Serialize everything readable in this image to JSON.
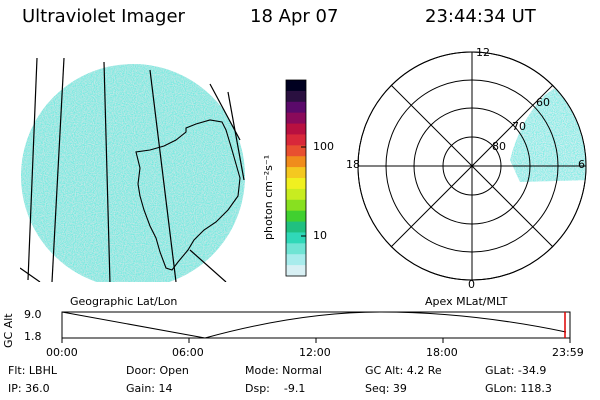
{
  "header": {
    "title": "Ultraviolet Imager",
    "date": "18 Apr 07",
    "time": "23:44:34 UT"
  },
  "colorbar": {
    "unit_label": "photon cm⁻²s⁻¹",
    "ticks": [
      "100",
      "10"
    ],
    "colors": [
      "#000020",
      "#2a1040",
      "#5a0a6a",
      "#8a0a5a",
      "#b81040",
      "#d8283a",
      "#e85030",
      "#f08c1c",
      "#f4c820",
      "#f0f020",
      "#c8ec20",
      "#88e020",
      "#40d030",
      "#20c080",
      "#30d8b8",
      "#70e4d4",
      "#a8ecec",
      "#d8f0f4"
    ]
  },
  "panels": {
    "left_label": "Geographic Lat/Lon",
    "right_label": "Apex  MLat/MLT"
  },
  "polar": {
    "top_label": "12",
    "left_label": "18",
    "right_label": "6",
    "bottom_label": "0",
    "ring_labels": [
      "60",
      "70",
      "80"
    ]
  },
  "altitude_plot": {
    "y_title": "GC Alt",
    "y_max_label": "9.0",
    "y_min_label": "1.8",
    "x_ticks": [
      "00:00",
      "06:00",
      "12:00",
      "18:00",
      "23:59"
    ]
  },
  "info": {
    "row1": {
      "filter": "Flt: LBHL",
      "door": "Door: Open",
      "mode": "Mode: Normal",
      "gc_alt": "GC Alt: 4.2 Re",
      "glat": "GLat: -34.9"
    },
    "row2": {
      "ip": "IP: 36.0",
      "gain": "Gain: 14",
      "dsp": "Dsp:    -9.1",
      "seq": "Seq: 39",
      "glon": "GLon: 118.3"
    }
  },
  "image_colors": {
    "low": "#d8e8ea",
    "mid": "#2fdcc6",
    "outline": "#000000"
  }
}
